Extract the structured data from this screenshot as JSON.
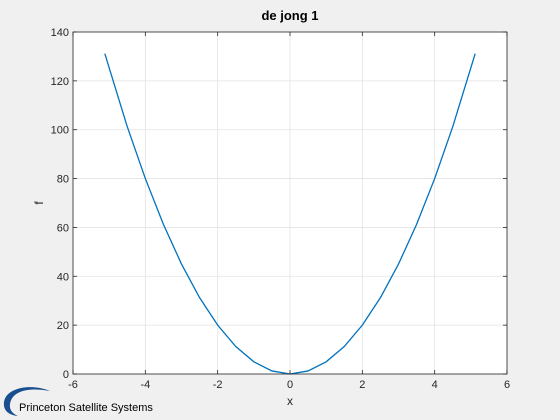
{
  "chart_data": {
    "type": "line",
    "title": "de jong 1",
    "xlabel": "x",
    "ylabel": "f",
    "xlim": [
      -6,
      6
    ],
    "ylim": [
      0,
      140
    ],
    "xticks": [
      -6,
      -4,
      -2,
      0,
      2,
      4,
      6
    ],
    "yticks": [
      0,
      20,
      40,
      60,
      80,
      100,
      120,
      140
    ],
    "grid": true,
    "series": [
      {
        "color": "#0072BD",
        "x": [
          -5.12,
          -4.5,
          -4.0,
          -3.5,
          -3.0,
          -2.5,
          -2.0,
          -1.5,
          -1.0,
          -0.5,
          0.0,
          0.5,
          1.0,
          1.5,
          2.0,
          2.5,
          3.0,
          3.5,
          4.0,
          4.5,
          5.12
        ],
        "y": [
          131.1,
          101.25,
          80.0,
          61.25,
          45.0,
          31.25,
          20.0,
          11.25,
          5.0,
          1.25,
          0.0,
          1.25,
          5.0,
          11.25,
          20.0,
          31.25,
          45.0,
          61.25,
          80.0,
          101.25,
          131.1
        ]
      }
    ]
  },
  "footer": {
    "logo_text": "Princeton Satellite Systems",
    "logo_color": "#1a4f8f"
  }
}
